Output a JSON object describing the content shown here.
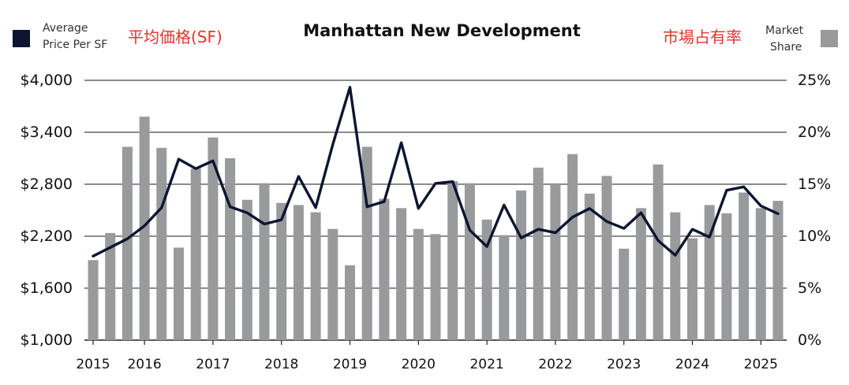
{
  "chart_data": {
    "type": "bar",
    "title": "Manhattan New Development",
    "left_legend": {
      "line1": "Average",
      "line2": "Price Per SF",
      "annotation": "平均価格(SF)",
      "swatch_color": "#0d1530"
    },
    "right_legend": {
      "line1": "Market",
      "line2": "Share",
      "annotation": "市場占有率",
      "swatch_color": "#999a9c"
    },
    "y_left": {
      "ticks": [
        "$4,000",
        "$3,400",
        "$2,800",
        "$2,200",
        "$1,600",
        "$1,000"
      ],
      "range": [
        1000,
        4000
      ]
    },
    "y_right": {
      "ticks": [
        "25%",
        "20%",
        "15%",
        "10%",
        "5%",
        "0%"
      ],
      "range": [
        0,
        25
      ]
    },
    "x_axis": {
      "labels": [
        "2015",
        "2016",
        "2017",
        "2018",
        "2019",
        "2020",
        "2021",
        "2022",
        "2023",
        "2024",
        "2025"
      ],
      "label_positions": [
        0,
        3,
        7,
        11,
        15,
        19,
        23,
        27,
        31,
        35,
        39
      ]
    },
    "series": [
      {
        "name": "Market Share",
        "kind": "bar",
        "color": "#999a9c",
        "values": [
          7.7,
          10.3,
          18.6,
          21.5,
          18.5,
          8.9,
          16.5,
          19.5,
          17.5,
          13.5,
          15.1,
          13.2,
          13.0,
          12.3,
          10.7,
          7.2,
          18.6,
          13.6,
          12.7,
          10.7,
          10.2,
          15.3,
          15.1,
          11.6,
          10.1,
          14.4,
          16.6,
          15.0,
          17.9,
          14.1,
          15.8,
          8.8,
          12.7,
          16.9,
          12.3,
          9.8,
          13.0,
          12.2,
          14.2,
          12.7,
          13.4
        ]
      },
      {
        "name": "Average Price Per SF",
        "kind": "line",
        "color": "#0d1530",
        "values": [
          1970,
          2070,
          2170,
          2320,
          2530,
          3090,
          2980,
          3070,
          2540,
          2470,
          2340,
          2390,
          2890,
          2530,
          3260,
          3920,
          2540,
          2600,
          3280,
          2520,
          2810,
          2830,
          2270,
          2080,
          2560,
          2180,
          2280,
          2240,
          2420,
          2520,
          2370,
          2290,
          2470,
          2150,
          1980,
          2280,
          2190,
          2730,
          2770,
          2550,
          2460
        ]
      }
    ]
  }
}
